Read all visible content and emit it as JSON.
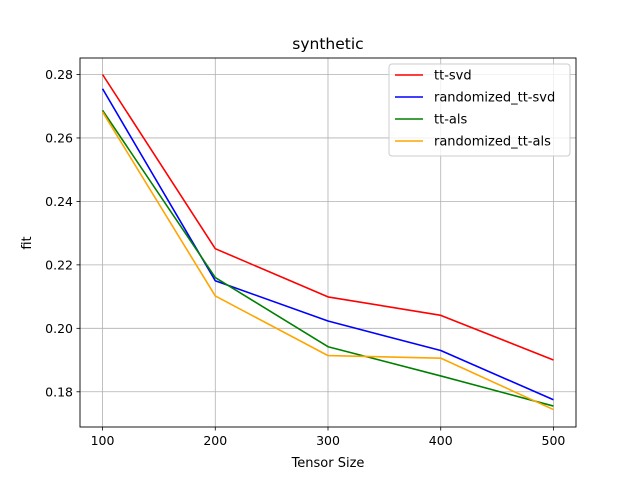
{
  "chart_data": {
    "type": "line",
    "title": "synthetic",
    "xlabel": "Tensor Size",
    "ylabel": "fit",
    "x": [
      100,
      200,
      300,
      400,
      500
    ],
    "xticks": [
      100,
      200,
      300,
      400,
      500
    ],
    "yticks": [
      0.18,
      0.2,
      0.22,
      0.24,
      0.26,
      0.28
    ],
    "ytick_labels": [
      "0.18",
      "0.20",
      "0.22",
      "0.24",
      "0.26",
      "0.28"
    ],
    "xlim": [
      80,
      520
    ],
    "ylim": [
      0.1689,
      0.2852
    ],
    "grid": true,
    "legend_position": "upper right",
    "series": [
      {
        "name": "tt-svd",
        "color": "#ff0000",
        "values": [
          0.28,
          0.2251,
          0.2099,
          0.2041,
          0.19
        ]
      },
      {
        "name": "randomized_tt-svd",
        "color": "#0000ff",
        "values": [
          0.2755,
          0.215,
          0.2023,
          0.193,
          0.1775
        ]
      },
      {
        "name": "tt-als",
        "color": "#008000",
        "values": [
          0.2687,
          0.216,
          0.1942,
          0.185,
          0.1755
        ]
      },
      {
        "name": "randomized_tt-als",
        "color": "#ffa500",
        "values": [
          0.2682,
          0.2102,
          0.1914,
          0.1906,
          0.1744
        ]
      }
    ]
  }
}
